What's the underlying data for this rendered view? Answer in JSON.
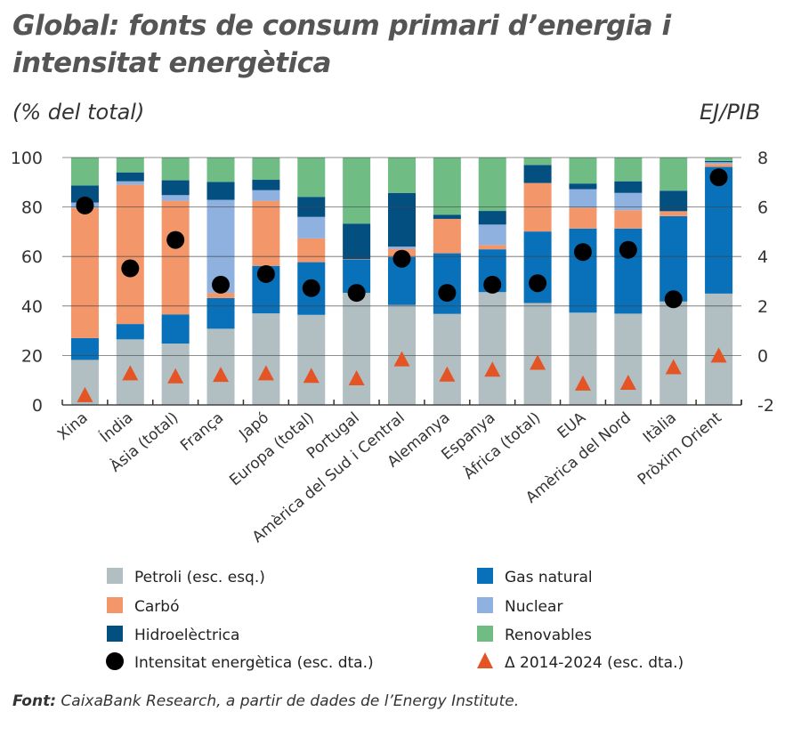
{
  "chart_data": {
    "type": "bar",
    "stacked": true,
    "title": "Global: fonts de consum primari d’energia i intensitat energètica",
    "ylabel_left": "(% del total)",
    "ylabel_right": "EJ/PIB",
    "ylim_left": [
      0,
      100
    ],
    "ylim_right": [
      -2,
      8
    ],
    "yticks_left": [
      "0",
      "20",
      "40",
      "60",
      "80",
      "100"
    ],
    "yticks_right": [
      "-2",
      "0",
      "2",
      "4",
      "6",
      "8"
    ],
    "categories": [
      "Xina",
      "Índia",
      "Àsia (total)",
      "França",
      "Japó",
      "Europa (total)",
      "Portugal",
      "Amèrica del Sud i Central",
      "Alemanya",
      "Espanya",
      "Àfrica (total)",
      "EUA",
      "Amèrica del Nord",
      "Itàlia",
      "Pròxim Orient"
    ],
    "series": [
      {
        "name": "Petroli (esc. esq.)",
        "color": "#b1bfc3",
        "values": [
          18.2,
          26.5,
          24.8,
          30.8,
          37.0,
          36.4,
          45.3,
          40.4,
          36.8,
          45.6,
          41.2,
          37.3,
          36.9,
          41.8,
          45.0
        ]
      },
      {
        "name": "Gas natural",
        "color": "#0871b9",
        "values": [
          8.8,
          6.2,
          11.8,
          12.4,
          19.2,
          21.3,
          13.5,
          19.4,
          24.5,
          17.3,
          28.9,
          34.0,
          34.4,
          34.5,
          51.2
        ]
      },
      {
        "name": "Carbó",
        "color": "#f3976b",
        "values": [
          52.6,
          56.3,
          45.9,
          2.1,
          26.3,
          9.6,
          0.2,
          3.3,
          13.9,
          1.7,
          19.6,
          8.4,
          7.4,
          2.0,
          1.2
        ]
      },
      {
        "name": "Nuclear",
        "color": "#8eb1e0",
        "values": [
          2.2,
          1.4,
          2.3,
          37.6,
          4.3,
          8.7,
          0,
          0.9,
          0,
          8.3,
          0,
          7.5,
          7.0,
          0,
          0.7
        ]
      },
      {
        "name": "Hidroelèctrica",
        "color": "#034f80",
        "values": [
          6.9,
          3.6,
          6.0,
          7.2,
          4.2,
          8.1,
          14.3,
          21.7,
          1.7,
          5.5,
          7.3,
          2.3,
          4.7,
          8.3,
          0.5
        ]
      },
      {
        "name": "Renovables",
        "color": "#6fbd84",
        "values": [
          11.3,
          6.0,
          9.2,
          9.9,
          9.0,
          15.9,
          26.7,
          14.3,
          23.1,
          21.6,
          3.0,
          10.5,
          9.6,
          13.4,
          1.4
        ]
      }
    ],
    "points": [
      {
        "name": "Intensitat energètica (esc. dta.)",
        "marker": "circle",
        "color": "#000000",
        "axis": "right",
        "values": [
          6.06,
          3.52,
          4.67,
          2.86,
          3.29,
          2.72,
          2.53,
          3.91,
          2.53,
          2.86,
          2.92,
          4.18,
          4.27,
          2.27,
          7.2
        ]
      },
      {
        "name": "Δ 2014-2024 (esc. dta.)",
        "marker": "triangle",
        "color": "#e45424",
        "axis": "right",
        "values": [
          -1.6,
          -0.72,
          -0.84,
          -0.78,
          -0.72,
          -0.82,
          -0.92,
          -0.15,
          -0.77,
          -0.57,
          -0.29,
          -1.13,
          -1.1,
          -0.47,
          0.0
        ]
      }
    ],
    "legend_order": [
      "Petroli (esc. esq.)",
      "Gas natural",
      "Carbó",
      "Nuclear",
      "Hidroelèctrica",
      "Renovables",
      "Intensitat energètica (esc. dta.)",
      "Δ 2014-2024 (esc. dta.)"
    ],
    "legend_position": "bottom",
    "grid": true
  },
  "source": {
    "label": "Font:",
    "text": " CaixaBank Research, a partir de dades de l’Energy Institute."
  }
}
